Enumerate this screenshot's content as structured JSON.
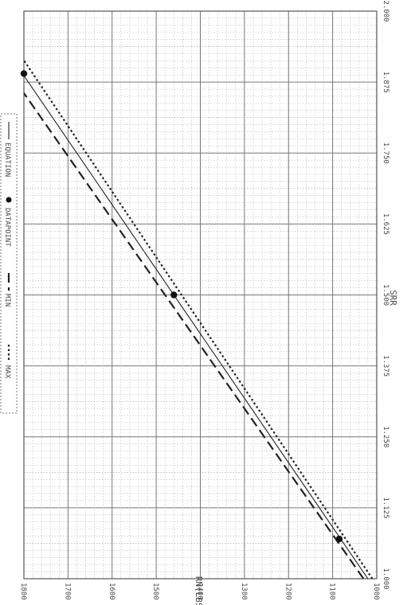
{
  "chart_data": {
    "type": "line",
    "orientation": "rotated-90-clockwise",
    "xlabel": "SRR",
    "ylabel": "RN(LBS)",
    "x_ticks": [
      "1.000",
      "1.125",
      "1.250",
      "1.375",
      "1.500",
      "1.625",
      "1.750",
      "1.875",
      "2.000"
    ],
    "y_ticks": [
      "1000",
      "1100",
      "1200",
      "1300",
      "1400",
      "1500",
      "1600",
      "1700",
      "1800"
    ],
    "xlim": [
      1.0,
      2.0
    ],
    "ylim": [
      1000,
      1800
    ],
    "legend_position": "right, rotated",
    "legend": [
      "EQUATION",
      "DATAPOINT",
      "MIN",
      "MAX"
    ],
    "series": [
      {
        "name": "MAX",
        "style": "dotted",
        "x": [
          1.0,
          2.0
        ],
        "y": [
          1010,
          1875
        ]
      },
      {
        "name": "MIN",
        "style": "dashed",
        "x": [
          1.0,
          2.0
        ],
        "y": [
          1030,
          1930
        ]
      },
      {
        "name": "EQUATION",
        "style": "solid",
        "x": [
          1.0,
          2.0
        ],
        "y": [
          1020,
          1900
        ]
      }
    ],
    "datapoints": [
      {
        "x": 1.07,
        "y": 1085
      },
      {
        "x": 1.5,
        "y": 1460
      },
      {
        "x": 1.89,
        "y": 1800
      }
    ]
  }
}
